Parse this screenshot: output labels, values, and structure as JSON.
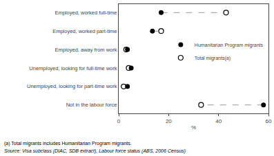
{
  "chart_data": {
    "type": "dot",
    "orientation": "horizontal",
    "categories": [
      "Employed, worked full-time",
      "Employed, worked part-time",
      "Employed, away from work",
      "Unemployed, looking for full-time work",
      "Unemployed, looking for part-time work",
      "Not in the labour force"
    ],
    "series": [
      {
        "name": "Humanitarian Program migrants",
        "color": "#000000",
        "marker": "filled",
        "values": [
          17.0,
          13.5,
          3.5,
          5.0,
          3.5,
          58.0
        ]
      },
      {
        "name": "Total migrants(a)",
        "color": "#000000",
        "marker": "open",
        "values": [
          43.0,
          17.0,
          3.0,
          4.0,
          2.0,
          33.0
        ]
      }
    ],
    "connector": {
      "color": "#999999",
      "line_style": "dashed",
      "shown": [
        true,
        true,
        false,
        true,
        false,
        true
      ]
    },
    "xlabel": "%",
    "xlim": [
      0,
      60
    ],
    "xticks": [
      0,
      20,
      40,
      60
    ],
    "grid": false,
    "legend": "right",
    "annotations": [
      "(a) Total migrants includes Humanitarian Program migrants.",
      "Source: Visa subclass (DIAC, SDB extract), Labour force status (ABS, 2006 Census)"
    ]
  }
}
